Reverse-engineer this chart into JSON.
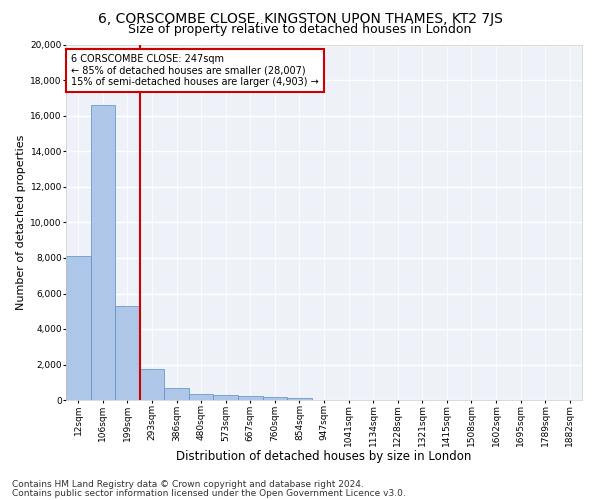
{
  "title": "6, CORSCOMBE CLOSE, KINGSTON UPON THAMES, KT2 7JS",
  "subtitle": "Size of property relative to detached houses in London",
  "xlabel": "Distribution of detached houses by size in London",
  "ylabel": "Number of detached properties",
  "footnote1": "Contains HM Land Registry data © Crown copyright and database right 2024.",
  "footnote2": "Contains public sector information licensed under the Open Government Licence v3.0.",
  "categories": [
    "12sqm",
    "106sqm",
    "199sqm",
    "293sqm",
    "386sqm",
    "480sqm",
    "573sqm",
    "667sqm",
    "760sqm",
    "854sqm",
    "947sqm",
    "1041sqm",
    "1134sqm",
    "1228sqm",
    "1321sqm",
    "1415sqm",
    "1508sqm",
    "1602sqm",
    "1695sqm",
    "1789sqm",
    "1882sqm"
  ],
  "values": [
    8100,
    16600,
    5300,
    1750,
    680,
    350,
    280,
    220,
    180,
    120,
    0,
    0,
    0,
    0,
    0,
    0,
    0,
    0,
    0,
    0,
    0
  ],
  "bar_color": "#aec6e8",
  "bar_edge_color": "#5b8ec7",
  "vline_color": "#cc0000",
  "vline_x": 2.5,
  "annotation_text": "6 CORSCOMBE CLOSE: 247sqm\n← 85% of detached houses are smaller (28,007)\n15% of semi-detached houses are larger (4,903) →",
  "annotation_box_color": "#cc0000",
  "ylim": [
    0,
    20000
  ],
  "yticks": [
    0,
    2000,
    4000,
    6000,
    8000,
    10000,
    12000,
    14000,
    16000,
    18000,
    20000
  ],
  "background_color": "#eef2f8",
  "grid_color": "#ffffff",
  "title_fontsize": 10,
  "subtitle_fontsize": 9,
  "xlabel_fontsize": 8.5,
  "ylabel_fontsize": 8,
  "tick_fontsize": 6.5,
  "annot_fontsize": 7,
  "footnote_fontsize": 6.5
}
